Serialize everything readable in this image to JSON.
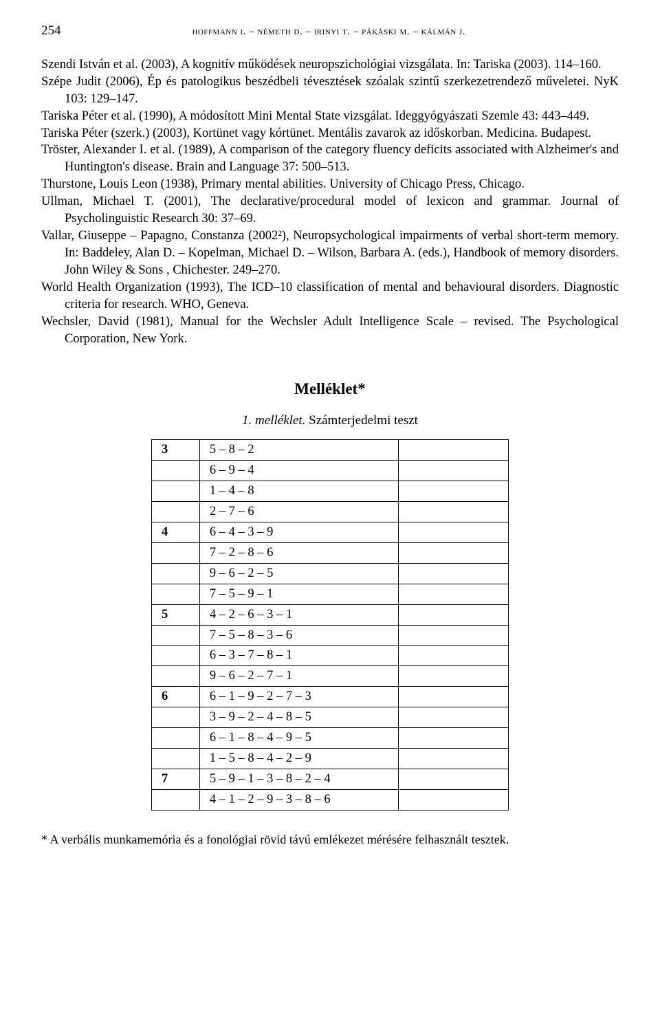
{
  "header": {
    "page_number": "254",
    "running_head": "hoffmann i. – németh d. – irinyi t. – pákáski m. – kálmán j."
  },
  "references": [
    "Szendi István et al. (2003), A kognitív működések neuropszichológiai vizsgálata. In: Tariska (2003). 114–160.",
    "Szépe Judit (2006), Ép és patologikus beszédbeli tévesztések szóalak szintű szerkezetrendező műveletei. NyK 103: 129–147.",
    "Tariska Péter et al. (1990), A módosított Mini Mental State vizsgálat. Ideggyógyászati Szemle 43: 443–449.",
    "Tariska Péter (szerk.) (2003), Kortünet vagy kórtünet. Mentális zavarok az időskorban. Medicina. Budapest.",
    "Tröster, Alexander I. et al. (1989), A comparison of the category fluency deficits associated with Alzheimer's and Huntington's disease. Brain and Language 37: 500–513.",
    "Thurstone, Louis Leon (1938), Primary mental abilities. University of Chicago Press, Chicago.",
    "Ullman, Michael T. (2001), The declarative/procedural model of lexicon and grammar. Journal of Psycholinguistic Research 30: 37–69.",
    "Vallar, Giuseppe – Papagno, Constanza (2002²), Neuropsychological impairments of verbal short-term memory. In: Baddeley, Alan D. – Kopelman, Michael D. – Wilson, Barbara A. (eds.), Handbook of memory disorders. John Wiley & Sons , Chichester. 249–270.",
    "World Health Organization (1993), The ICD–10 classification of mental and behavioural disorders. Diagnostic criteria for research. WHO, Geneva.",
    "Wechsler, David (1981), Manual for the Wechsler Adult Intelligence Scale – revised. The Psychological Corporation, New York."
  ],
  "appendix": {
    "heading": "Melléklet*",
    "caption_italic": "1. melléklet.",
    "caption_rest": " Számterjedelmi teszt",
    "rows": [
      {
        "len": "3",
        "seq": "5 – 8 – 2"
      },
      {
        "len": "",
        "seq": "6 – 9 – 4"
      },
      {
        "len": "",
        "seq": "1 – 4 – 8"
      },
      {
        "len": "",
        "seq": "2 – 7 – 6"
      },
      {
        "len": "4",
        "seq": "6 – 4 – 3 – 9"
      },
      {
        "len": "",
        "seq": "7 – 2 – 8 – 6"
      },
      {
        "len": "",
        "seq": "9 – 6 – 2 – 5"
      },
      {
        "len": "",
        "seq": "7 – 5 – 9 – 1"
      },
      {
        "len": "5",
        "seq": "4 – 2 – 6 – 3 – 1"
      },
      {
        "len": "",
        "seq": "7 – 5 – 8 – 3 – 6"
      },
      {
        "len": "",
        "seq": "6 – 3 – 7 – 8 – 1"
      },
      {
        "len": "",
        "seq": "9 – 6 – 2 – 7 – 1"
      },
      {
        "len": "6",
        "seq": "6 – 1 – 9 – 2 – 7 – 3"
      },
      {
        "len": "",
        "seq": "3 – 9 – 2 – 4 – 8 – 5"
      },
      {
        "len": "",
        "seq": "6 – 1 – 8 – 4 – 9 – 5"
      },
      {
        "len": "",
        "seq": "1 – 5 – 8 – 4 – 2 – 9"
      },
      {
        "len": "7",
        "seq": "5 – 9 – 1 – 3 – 8 – 2 – 4"
      },
      {
        "len": "",
        "seq": "4 – 1 – 2 – 9 – 3 – 8 – 6"
      }
    ]
  },
  "footnote": "* A verbális munkamemória és a fonológiai rövid távú emlékezet mérésére felhasznált tesztek."
}
